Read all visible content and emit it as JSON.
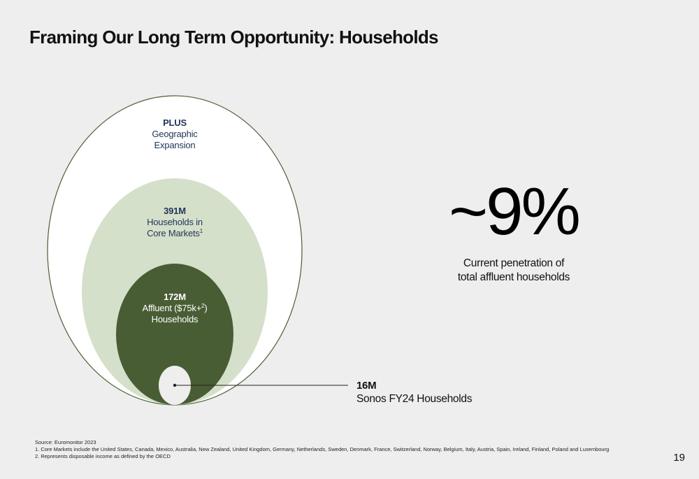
{
  "slide": {
    "title": "Framing Our Long Term Opportunity: Households",
    "page_number": "19"
  },
  "diagram": {
    "outer": {
      "line1": "PLUS",
      "line2": "Geographic",
      "line3": "Expansion"
    },
    "middle": {
      "value": "391M",
      "line1": "Households in",
      "line2": "Core Markets",
      "footnote_ref": "1"
    },
    "inner": {
      "value": "172M",
      "line1_pre": "Affluent ($75k+",
      "footnote_ref": "2",
      "line1_post": ")",
      "line2": "Households"
    },
    "callout": {
      "value": "16M",
      "label": "Sonos FY24 Households"
    }
  },
  "stat": {
    "value": "~9%",
    "caption_line1": "Current penetration of",
    "caption_line2": "total affluent households"
  },
  "footnotes": {
    "source": "Source: Euromonitor 2023",
    "note1": "1. Core Markets include the United States, Canada, Mexico, Australia, New Zealand, United Kingdom, Germany, Netherlands, Sweden, Denmark, France, Switzerland, Norway, Belgium, Italy, Austria, Spain, Ireland, Finland, Poland and Luxembourg",
    "note2": "2. Represents disposable income as defined by the OECD"
  },
  "colors": {
    "background": "#eeeeee",
    "outer_fill": "#ffffff",
    "outer_stroke": "#4a5e34",
    "middle_fill": "#d5e0cb",
    "inner_fill": "#495d34",
    "sonos_fill": "#eeeeee",
    "label_navy": "#1f3556"
  }
}
